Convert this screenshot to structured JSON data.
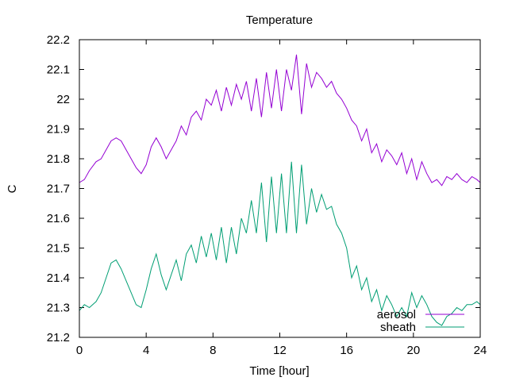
{
  "chart_data": {
    "type": "line",
    "title": "Temperature",
    "xlabel": "Time [hour]",
    "ylabel": "C",
    "xlim": [
      0,
      24
    ],
    "ylim": [
      21.2,
      22.2
    ],
    "xticks": [
      0,
      4,
      8,
      12,
      16,
      20,
      24
    ],
    "yticks": [
      21.2,
      21.3,
      21.4,
      21.5,
      21.6,
      21.7,
      21.8,
      21.9,
      22.0,
      22.1,
      22.2
    ],
    "xtick_labels": [
      "0",
      "4",
      "8",
      "12",
      "16",
      "20",
      "24"
    ],
    "ytick_labels": [
      "21.2",
      "21.3",
      "21.4",
      "21.5",
      "21.6",
      "21.7",
      "21.8",
      "21.9",
      "22",
      "22.1",
      "22.2"
    ],
    "grid": false,
    "legend_position": "bottom-right",
    "series": [
      {
        "name": "aerosol",
        "color": "#9400d3",
        "points": [
          [
            0.0,
            21.72
          ],
          [
            0.3,
            21.73
          ],
          [
            0.6,
            21.76
          ],
          [
            1.0,
            21.79
          ],
          [
            1.3,
            21.8
          ],
          [
            1.6,
            21.83
          ],
          [
            1.9,
            21.86
          ],
          [
            2.2,
            21.87
          ],
          [
            2.5,
            21.86
          ],
          [
            2.8,
            21.83
          ],
          [
            3.1,
            21.8
          ],
          [
            3.4,
            21.77
          ],
          [
            3.7,
            21.75
          ],
          [
            4.0,
            21.78
          ],
          [
            4.3,
            21.84
          ],
          [
            4.6,
            21.87
          ],
          [
            4.9,
            21.84
          ],
          [
            5.2,
            21.8
          ],
          [
            5.5,
            21.83
          ],
          [
            5.8,
            21.86
          ],
          [
            6.1,
            21.91
          ],
          [
            6.4,
            21.88
          ],
          [
            6.7,
            21.94
          ],
          [
            7.0,
            21.96
          ],
          [
            7.3,
            21.93
          ],
          [
            7.6,
            22.0
          ],
          [
            7.9,
            21.98
          ],
          [
            8.2,
            22.03
          ],
          [
            8.5,
            21.96
          ],
          [
            8.8,
            22.04
          ],
          [
            9.1,
            21.98
          ],
          [
            9.4,
            22.05
          ],
          [
            9.7,
            22.0
          ],
          [
            10.0,
            22.06
          ],
          [
            10.3,
            21.96
          ],
          [
            10.6,
            22.07
          ],
          [
            10.9,
            21.94
          ],
          [
            11.2,
            22.09
          ],
          [
            11.5,
            21.97
          ],
          [
            11.8,
            22.1
          ],
          [
            12.1,
            21.96
          ],
          [
            12.4,
            22.1
          ],
          [
            12.7,
            22.03
          ],
          [
            13.0,
            22.15
          ],
          [
            13.3,
            21.95
          ],
          [
            13.6,
            22.12
          ],
          [
            13.9,
            22.04
          ],
          [
            14.2,
            22.09
          ],
          [
            14.5,
            22.07
          ],
          [
            14.8,
            22.04
          ],
          [
            15.1,
            22.06
          ],
          [
            15.4,
            22.02
          ],
          [
            15.7,
            22.0
          ],
          [
            16.0,
            21.97
          ],
          [
            16.3,
            21.93
          ],
          [
            16.6,
            21.91
          ],
          [
            16.9,
            21.86
          ],
          [
            17.2,
            21.9
          ],
          [
            17.5,
            21.82
          ],
          [
            17.8,
            21.85
          ],
          [
            18.1,
            21.79
          ],
          [
            18.4,
            21.83
          ],
          [
            18.7,
            21.81
          ],
          [
            19.0,
            21.78
          ],
          [
            19.3,
            21.82
          ],
          [
            19.6,
            21.75
          ],
          [
            19.9,
            21.8
          ],
          [
            20.2,
            21.73
          ],
          [
            20.5,
            21.79
          ],
          [
            20.8,
            21.75
          ],
          [
            21.1,
            21.72
          ],
          [
            21.4,
            21.73
          ],
          [
            21.7,
            21.71
          ],
          [
            22.0,
            21.74
          ],
          [
            22.3,
            21.73
          ],
          [
            22.6,
            21.75
          ],
          [
            22.9,
            21.73
          ],
          [
            23.2,
            21.72
          ],
          [
            23.5,
            21.74
          ],
          [
            23.8,
            21.73
          ],
          [
            24.0,
            21.72
          ]
        ]
      },
      {
        "name": "sheath",
        "color": "#009e73",
        "points": [
          [
            0.0,
            21.29
          ],
          [
            0.3,
            21.31
          ],
          [
            0.6,
            21.3
          ],
          [
            1.0,
            21.32
          ],
          [
            1.3,
            21.35
          ],
          [
            1.6,
            21.4
          ],
          [
            1.9,
            21.45
          ],
          [
            2.2,
            21.46
          ],
          [
            2.5,
            21.43
          ],
          [
            2.8,
            21.39
          ],
          [
            3.1,
            21.35
          ],
          [
            3.4,
            21.31
          ],
          [
            3.7,
            21.3
          ],
          [
            4.0,
            21.36
          ],
          [
            4.3,
            21.43
          ],
          [
            4.6,
            21.48
          ],
          [
            4.9,
            21.41
          ],
          [
            5.2,
            21.36
          ],
          [
            5.5,
            21.41
          ],
          [
            5.8,
            21.46
          ],
          [
            6.1,
            21.39
          ],
          [
            6.4,
            21.48
          ],
          [
            6.7,
            21.51
          ],
          [
            7.0,
            21.45
          ],
          [
            7.3,
            21.54
          ],
          [
            7.6,
            21.47
          ],
          [
            7.9,
            21.55
          ],
          [
            8.2,
            21.46
          ],
          [
            8.5,
            21.57
          ],
          [
            8.8,
            21.45
          ],
          [
            9.1,
            21.57
          ],
          [
            9.4,
            21.48
          ],
          [
            9.7,
            21.6
          ],
          [
            10.0,
            21.55
          ],
          [
            10.3,
            21.66
          ],
          [
            10.6,
            21.55
          ],
          [
            10.9,
            21.72
          ],
          [
            11.2,
            21.52
          ],
          [
            11.5,
            21.74
          ],
          [
            11.8,
            21.55
          ],
          [
            12.1,
            21.75
          ],
          [
            12.4,
            21.55
          ],
          [
            12.7,
            21.79
          ],
          [
            13.0,
            21.55
          ],
          [
            13.3,
            21.78
          ],
          [
            13.6,
            21.58
          ],
          [
            13.9,
            21.7
          ],
          [
            14.2,
            21.62
          ],
          [
            14.5,
            21.68
          ],
          [
            14.8,
            21.63
          ],
          [
            15.1,
            21.64
          ],
          [
            15.4,
            21.58
          ],
          [
            15.7,
            21.55
          ],
          [
            16.0,
            21.5
          ],
          [
            16.3,
            21.4
          ],
          [
            16.6,
            21.44
          ],
          [
            16.9,
            21.36
          ],
          [
            17.2,
            21.4
          ],
          [
            17.5,
            21.32
          ],
          [
            17.8,
            21.36
          ],
          [
            18.1,
            21.29
          ],
          [
            18.4,
            21.34
          ],
          [
            18.7,
            21.31
          ],
          [
            19.0,
            21.27
          ],
          [
            19.3,
            21.3
          ],
          [
            19.6,
            21.27
          ],
          [
            19.9,
            21.35
          ],
          [
            20.2,
            21.3
          ],
          [
            20.5,
            21.34
          ],
          [
            20.8,
            21.31
          ],
          [
            21.1,
            21.27
          ],
          [
            21.4,
            21.25
          ],
          [
            21.7,
            21.24
          ],
          [
            22.0,
            21.27
          ],
          [
            22.3,
            21.28
          ],
          [
            22.6,
            21.3
          ],
          [
            22.9,
            21.29
          ],
          [
            23.2,
            21.31
          ],
          [
            23.5,
            21.31
          ],
          [
            23.8,
            21.32
          ],
          [
            24.0,
            21.31
          ]
        ]
      }
    ]
  }
}
